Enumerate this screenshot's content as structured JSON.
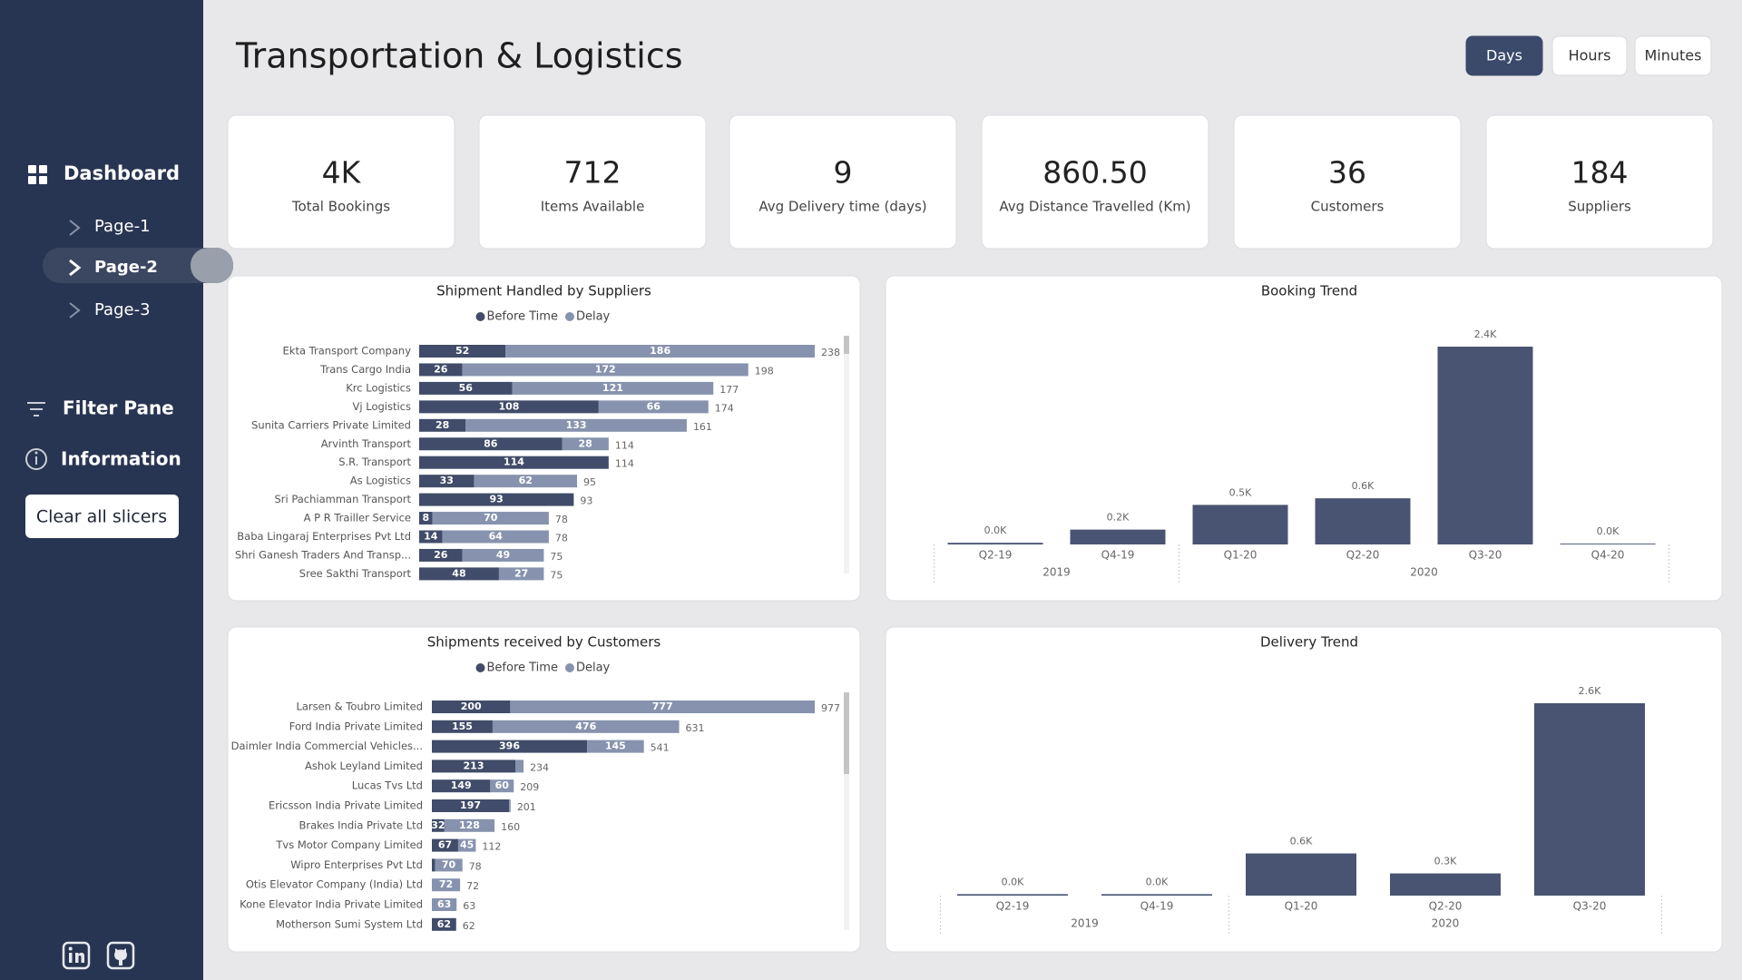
{
  "sidebar": {
    "title": "Dashboard",
    "pages": [
      "Page-1",
      "Page-2",
      "Page-3"
    ],
    "active_page": 1,
    "links": [
      "Filter Pane",
      "Information"
    ],
    "button": "Clear all slicers"
  },
  "header": {
    "title": "Transportation & Logistics",
    "time_units": [
      "Days",
      "Hours",
      "Minutes"
    ],
    "selected_unit": 0
  },
  "kpis": [
    {
      "value": "4K",
      "label": "Total Bookings"
    },
    {
      "value": 712,
      "label": "Items Available"
    },
    {
      "value": 9,
      "label": "Avg Delivery time (days)"
    },
    {
      "value": "860.50",
      "label": "Avg Distance Travelled (Km)"
    },
    {
      "value": 36,
      "label": "Customers"
    },
    {
      "value": 184,
      "label": "Suppliers"
    }
  ],
  "chart_data": [
    {
      "type": "bar",
      "orientation": "horizontal",
      "stacked": true,
      "title": "Shipment Handled by Suppliers",
      "categories": [
        "Ekta Transport Company",
        "Trans Cargo India",
        "Krc Logistics",
        "Vj Logistics",
        "Sunita Carriers Private Limited",
        "Arvinth Transport",
        "S.R. Transport",
        "As Logistics",
        "Sri Pachiamman Transport",
        "A P R Trailler Service",
        "Baba Lingaraj Enterprises Pvt Ltd",
        "Shri Ganesh Traders And Transp...",
        "Sree Sakthi Transport"
      ],
      "series": [
        {
          "name": "Before Time",
          "color": "#404c69",
          "values": [
            52,
            26,
            56,
            108,
            28,
            86,
            114,
            33,
            93,
            8,
            14,
            26,
            48
          ]
        },
        {
          "name": "Delay",
          "color": "#8793ae",
          "values": [
            186,
            172,
            121,
            66,
            133,
            28,
            null,
            62,
            null,
            70,
            64,
            49,
            27
          ]
        }
      ],
      "totals": [
        238,
        198,
        177,
        174,
        161,
        114,
        114,
        95,
        93,
        78,
        78,
        75,
        75
      ]
    },
    {
      "type": "bar",
      "orientation": "vertical",
      "title": "Booking Trend",
      "categories": [
        "Q2-19",
        "Q4-19",
        "Q1-20",
        "Q2-20",
        "Q3-20",
        "Q4-20"
      ],
      "x_groups": [
        {
          "label": "2019",
          "count": 2
        },
        {
          "label": "2020",
          "count": 4
        }
      ],
      "color": "#485471",
      "values": [
        20,
        180,
        480,
        560,
        2400,
        10
      ],
      "value_labels": [
        "0.0K",
        "0.2K",
        "0.5K",
        "0.6K",
        "2.4K",
        "0.0K"
      ]
    },
    {
      "type": "bar",
      "orientation": "horizontal",
      "stacked": true,
      "title": "Shipments received by Customers",
      "categories": [
        "Larsen & Toubro Limited",
        "Ford India Private Limited",
        "Daimler India Commercial Vehicles...",
        "Ashok Leyland Limited",
        "Lucas Tvs Ltd",
        "Ericsson India Private Limited",
        "Brakes India Private Ltd",
        "Tvs Motor Company Limited",
        "Wipro Enterprises Pvt Ltd",
        "Otis Elevator Company (India) Ltd",
        "Kone Elevator India Private Limited",
        "Motherson Sumi System Ltd"
      ],
      "series": [
        {
          "name": "Before Time",
          "color": "#404c69",
          "values": [
            200,
            155,
            396,
            213,
            149,
            197,
            32,
            67,
            8,
            null,
            null,
            62
          ]
        },
        {
          "name": "Delay",
          "color": "#8793ae",
          "values": [
            777,
            476,
            145,
            21,
            60,
            4,
            128,
            45,
            70,
            72,
            63,
            null
          ]
        }
      ],
      "totals": [
        977,
        631,
        541,
        234,
        209,
        201,
        160,
        112,
        78,
        72,
        63,
        62
      ]
    },
    {
      "type": "bar",
      "orientation": "vertical",
      "title": "Delivery Trend",
      "categories": [
        "Q2-19",
        "Q4-19",
        "Q1-20",
        "Q2-20",
        "Q3-20"
      ],
      "x_groups": [
        {
          "label": "2019",
          "count": 2
        },
        {
          "label": "2020",
          "count": 3
        }
      ],
      "color": "#485471",
      "values": [
        20,
        20,
        570,
        300,
        2600
      ],
      "value_labels": [
        "0.0K",
        "0.0K",
        "0.6K",
        "0.3K",
        "2.6K"
      ]
    }
  ]
}
